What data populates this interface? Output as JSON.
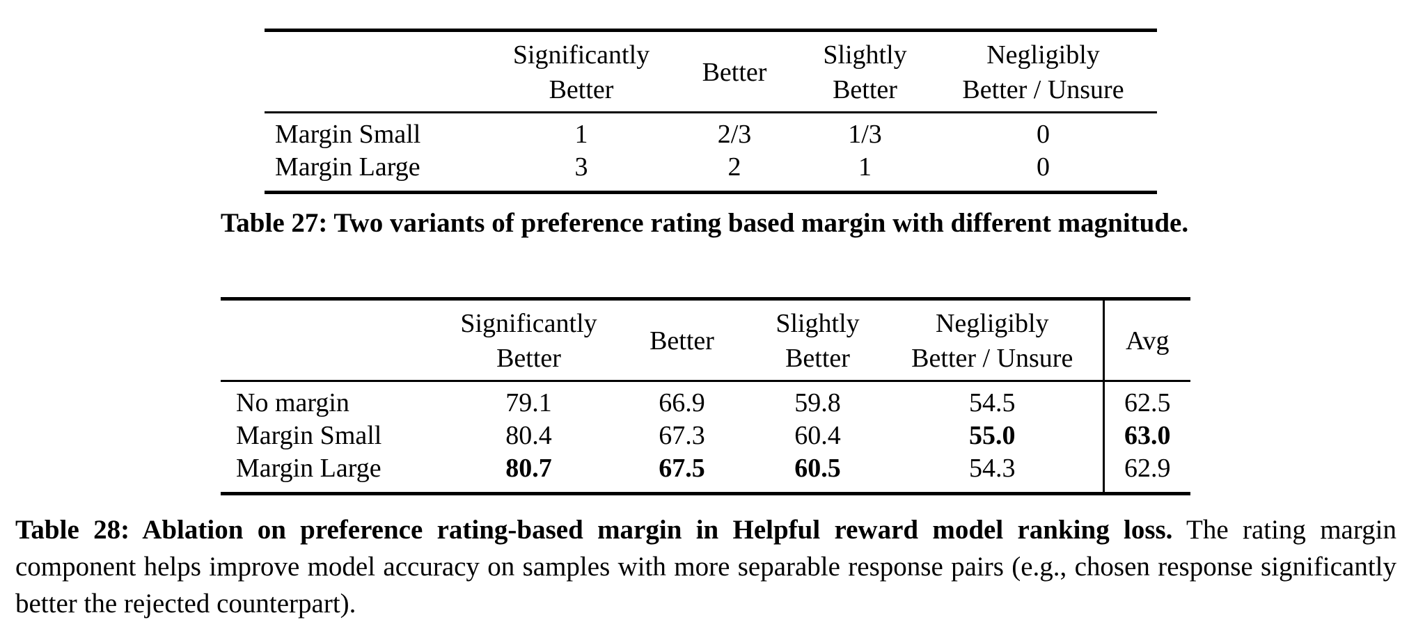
{
  "page": {
    "background_color": "#ffffff",
    "text_color": "#000000"
  },
  "table27": {
    "headers": [
      {
        "line1": "Significantly",
        "line2": "Better"
      },
      {
        "line1": "Better",
        "line2": ""
      },
      {
        "line1": "Slightly",
        "line2": "Better"
      },
      {
        "line1": "Negligibly",
        "line2": "Better / Unsure"
      }
    ],
    "rows": [
      {
        "label": "Margin Small",
        "values": [
          "1",
          "2/3",
          "1/3",
          "0"
        ]
      },
      {
        "label": "Margin Large",
        "values": [
          "3",
          "2",
          "1",
          "0"
        ]
      }
    ],
    "caption": "Table 27: Two variants of preference rating based margin with different magnitude."
  },
  "table28": {
    "headers": [
      {
        "line1": "Significantly",
        "line2": "Better"
      },
      {
        "line1": "Better",
        "line2": ""
      },
      {
        "line1": "Slightly",
        "line2": "Better"
      },
      {
        "line1": "Negligibly",
        "line2": "Better / Unsure"
      },
      {
        "line1": "Avg",
        "line2": ""
      }
    ],
    "rows": [
      {
        "label": "No margin",
        "values": [
          "79.1",
          "66.9",
          "59.8",
          "54.5"
        ],
        "bold": [
          false,
          false,
          false,
          false
        ],
        "avg": "62.5",
        "avg_bold": false
      },
      {
        "label": "Margin Small",
        "values": [
          "80.4",
          "67.3",
          "60.4",
          "55.0"
        ],
        "bold": [
          false,
          false,
          false,
          true
        ],
        "avg": "63.0",
        "avg_bold": true
      },
      {
        "label": "Margin Large",
        "values": [
          "80.7",
          "67.5",
          "60.5",
          "54.3"
        ],
        "bold": [
          true,
          true,
          true,
          false
        ],
        "avg": "62.9",
        "avg_bold": false
      }
    ],
    "caption_bold": "Table 28: Ablation on preference rating-based margin in Helpful reward model ranking loss.",
    "caption_regular": "The rating margin component helps improve model accuracy on samples with more separable response pairs (e.g., chosen response significantly better the rejected counterpart)."
  }
}
